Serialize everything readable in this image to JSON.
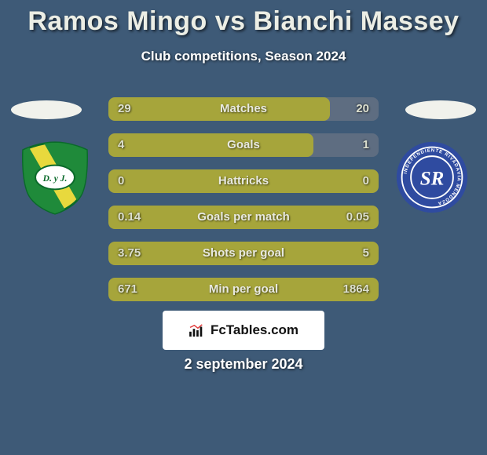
{
  "background_color": "#3e5a77",
  "title": {
    "text": "Ramos Mingo vs Bianchi Massey",
    "color": "#eceee5",
    "fontsize": 34
  },
  "subtitle": {
    "text": "Club competitions, Season 2024",
    "color": "#ffffff",
    "fontsize": 17
  },
  "oval_color": "#f1f2ec",
  "badges": {
    "left": {
      "type": "shield",
      "primary_color": "#e8d93d",
      "secondary_color": "#1f8a3a",
      "text": "D. y J.",
      "text_color": "#0a6a2a"
    },
    "right": {
      "type": "circle",
      "primary_color": "#2f4ba0",
      "secondary_color": "#ffffff",
      "ring_text": "INDEPENDIENTE RIVADAVIA MENDOZA",
      "center_text": "SR"
    }
  },
  "bars": {
    "track_color": "#5e6d81",
    "fill_color": "#a6a53b",
    "label_color": "#e8e9e0",
    "value_color": "#dcdfce",
    "rows": [
      {
        "label": "Matches",
        "left": "29",
        "right": "20",
        "fill_pct": 82
      },
      {
        "label": "Goals",
        "left": "4",
        "right": "1",
        "fill_pct": 76
      },
      {
        "label": "Hattricks",
        "left": "0",
        "right": "0",
        "fill_pct": 100
      },
      {
        "label": "Goals per match",
        "left": "0.14",
        "right": "0.05",
        "fill_pct": 100
      },
      {
        "label": "Shots per goal",
        "left": "3.75",
        "right": "5",
        "fill_pct": 100
      },
      {
        "label": "Min per goal",
        "left": "671",
        "right": "1864",
        "fill_pct": 100
      }
    ]
  },
  "brand": {
    "text": "FcTables.com",
    "box_bg": "#ffffff",
    "text_color": "#111111",
    "chart_color": "#111111",
    "line_color": "#e23b3b"
  },
  "date": {
    "text": "2 september 2024",
    "color": "#ffffff",
    "fontsize": 18
  }
}
